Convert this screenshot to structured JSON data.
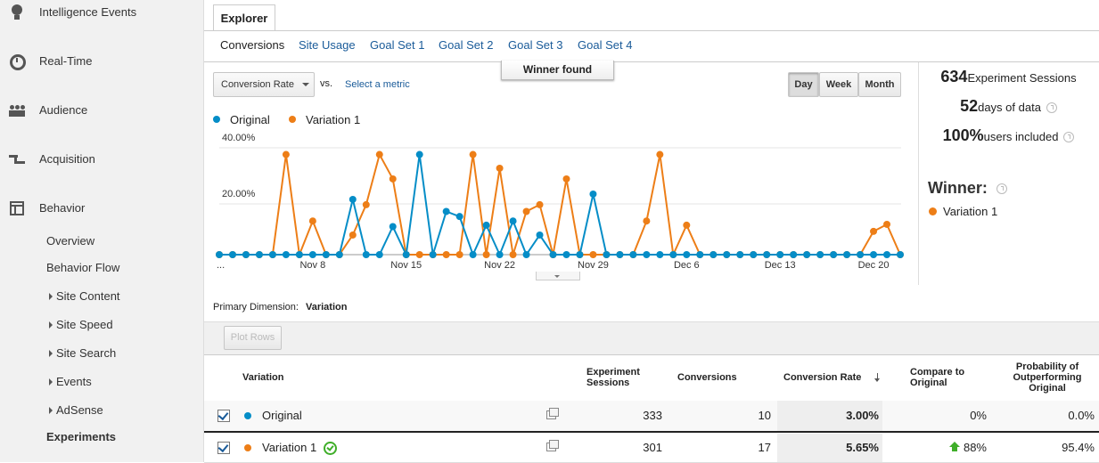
{
  "sidebar": {
    "items": [
      {
        "label": "Intelligence Events",
        "icon": "bulb"
      },
      {
        "label": "Real-Time",
        "icon": "clock"
      },
      {
        "label": "Audience",
        "icon": "people"
      },
      {
        "label": "Acquisition",
        "icon": "arrows"
      },
      {
        "label": "Behavior",
        "icon": "window"
      }
    ],
    "subitems": [
      {
        "label": "Overview",
        "expandable": false,
        "active": false
      },
      {
        "label": "Behavior Flow",
        "expandable": false,
        "active": false
      },
      {
        "label": "Site Content",
        "expandable": true,
        "active": false
      },
      {
        "label": "Site Speed",
        "expandable": true,
        "active": false
      },
      {
        "label": "Site Search",
        "expandable": true,
        "active": false
      },
      {
        "label": "Events",
        "expandable": true,
        "active": false
      },
      {
        "label": "AdSense",
        "expandable": true,
        "active": false
      },
      {
        "label": "Experiments",
        "expandable": false,
        "active": true
      }
    ]
  },
  "tabs": {
    "active": "Explorer",
    "subtabs": [
      "Conversions",
      "Site Usage",
      "Goal Set 1",
      "Goal Set 2",
      "Goal Set 3",
      "Goal Set 4"
    ]
  },
  "controls": {
    "metric": "Conversion Rate",
    "vs": "vs.",
    "select": "Select a metric",
    "banner": "Winner found",
    "periods": [
      "Day",
      "Week",
      "Month"
    ],
    "active_period": "Day"
  },
  "chart_data": {
    "type": "line",
    "categories": [
      "...",
      null,
      null,
      null,
      null,
      null,
      null,
      "Nov 8",
      null,
      null,
      null,
      null,
      null,
      null,
      "Nov 15",
      null,
      null,
      null,
      null,
      null,
      null,
      "Nov 22",
      null,
      null,
      null,
      null,
      null,
      null,
      "Nov 29",
      null,
      null,
      null,
      null,
      null,
      null,
      "Dec 6",
      null,
      null,
      null,
      null,
      null,
      null,
      "Dec 13",
      null,
      null,
      null,
      null,
      null,
      null,
      "Dec 20",
      null,
      null
    ],
    "series": [
      {
        "name": "Original",
        "color": "#058dc7",
        "values": [
          0,
          0,
          0,
          0,
          0,
          0,
          0,
          0,
          0,
          0,
          19.7,
          0,
          0,
          10,
          0,
          35.7,
          0,
          15.4,
          13.6,
          0,
          10.5,
          0,
          12,
          0,
          7,
          0,
          0,
          0,
          21.6,
          0,
          0,
          0,
          0,
          0,
          0,
          0,
          0,
          0,
          0,
          0,
          0,
          0,
          0,
          0,
          0,
          0,
          0,
          0,
          0,
          0,
          0,
          0
        ]
      },
      {
        "name": "Variation 1",
        "color": "#ed7e17",
        "values": [
          0,
          0,
          0,
          0,
          0,
          35.7,
          0,
          12,
          0,
          0,
          7,
          17.8,
          35.7,
          27,
          0,
          0,
          0,
          0,
          0,
          35.7,
          0,
          30.8,
          0,
          15.4,
          17.8,
          0,
          27,
          0,
          0,
          0,
          0,
          0,
          12,
          35.7,
          0,
          10.5,
          0,
          0,
          0,
          0,
          0,
          0,
          0,
          0,
          0,
          0,
          0,
          0,
          0,
          8.3,
          10.8,
          0
        ]
      }
    ],
    "ylim": [
      0,
      40
    ],
    "yticks": [
      {
        "value": 20,
        "label": "20.00%"
      },
      {
        "value": 40,
        "label": "40.00%"
      }
    ],
    "grid": true
  },
  "stats": [
    {
      "value": "634",
      "label": "Experiment Sessions",
      "help": false
    },
    {
      "value": "52",
      "label": "days of data",
      "help": true
    },
    {
      "value": "100%",
      "label": "users included",
      "help": true
    }
  ],
  "winner": {
    "title": "Winner:",
    "name": "Variation 1",
    "color": "#ed7e17"
  },
  "dimension": {
    "label": "Primary Dimension:",
    "value": "Variation"
  },
  "plot_rows": "Plot Rows",
  "table": {
    "headers": [
      "Variation",
      "Experiment Sessions",
      "Conversions",
      "Conversion Rate",
      "Compare to Original",
      "Probability of Outperforming Original"
    ],
    "rows": [
      {
        "color": "#058dc7",
        "winner": false,
        "improved": false,
        "cells": [
          "Original",
          "333",
          "10",
          "3.00%",
          "0%",
          "0.0%"
        ]
      },
      {
        "color": "#ed7e17",
        "winner": true,
        "improved": true,
        "cells": [
          "Variation 1",
          "301",
          "17",
          "5.65%",
          "88%",
          "95.4%"
        ]
      }
    ]
  }
}
